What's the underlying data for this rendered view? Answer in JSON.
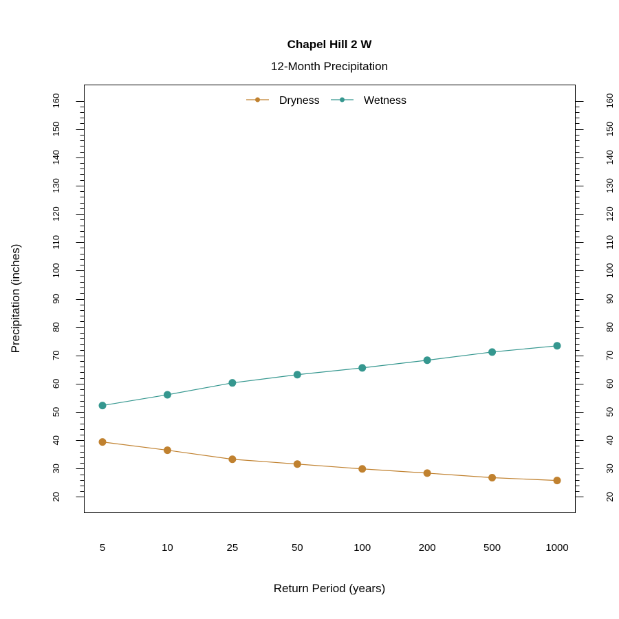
{
  "chart_data": {
    "type": "line",
    "title": "Chapel Hill 2 W",
    "subtitle": "12-Month Precipitation",
    "xlabel": "Return Period (years)",
    "ylabel": "Precipitation (inches)",
    "categories": [
      "5",
      "10",
      "25",
      "50",
      "100",
      "200",
      "500",
      "1000"
    ],
    "ylim": [
      14.4,
      165.6
    ],
    "yticks": [
      20,
      30,
      40,
      50,
      60,
      70,
      80,
      90,
      100,
      110,
      120,
      130,
      140,
      150,
      160
    ],
    "y_minor_step": 2,
    "y_axis_both_sides": true,
    "grid": false,
    "legend": "top-center",
    "series": [
      {
        "name": "Dryness",
        "color": "#C0812F",
        "values": [
          39.4,
          36.5,
          33.3,
          31.6,
          29.9,
          28.4,
          26.8,
          25.8
        ]
      },
      {
        "name": "Wetness",
        "color": "#35978F",
        "values": [
          52.3,
          56.1,
          60.3,
          63.2,
          65.6,
          68.3,
          71.2,
          73.4
        ]
      }
    ]
  }
}
